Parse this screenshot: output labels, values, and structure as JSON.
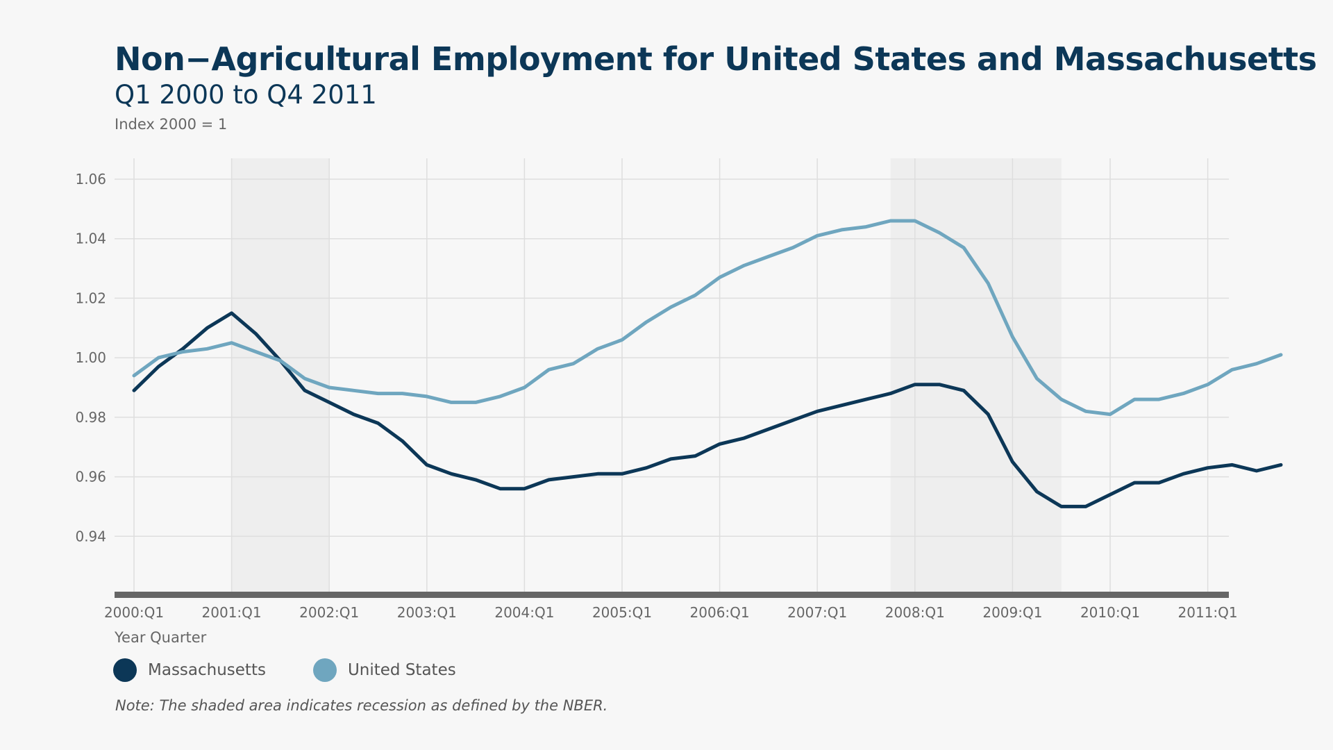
{
  "header": {
    "title": "Non−Agricultural Employment for United States and Massachusetts",
    "subtitle": "Q1 2000 to Q4 2011",
    "index_label": "Index 2000 = 1"
  },
  "legend": {
    "items": [
      {
        "label": "Massachusetts",
        "color": "#0c3757"
      },
      {
        "label": "United States",
        "color": "#6fa6bf"
      }
    ]
  },
  "note": "Note: The shaded area indicates recession as defined by the NBER.",
  "chart_data": {
    "type": "line",
    "xlabel": "Year Quarter",
    "ylabel": "",
    "ylim": [
      0.92,
      1.067
    ],
    "yticks": [
      "0.94",
      "0.96",
      "0.98",
      "1.00",
      "1.02",
      "1.04",
      "1.06"
    ],
    "xticks": [
      "2000:Q1",
      "2001:Q1",
      "2002:Q1",
      "2003:Q1",
      "2004:Q1",
      "2005:Q1",
      "2006:Q1",
      "2007:Q1",
      "2008:Q1",
      "2009:Q1",
      "2010:Q1",
      "2011:Q1"
    ],
    "x": [
      "2000:Q1",
      "2000:Q2",
      "2000:Q3",
      "2000:Q4",
      "2001:Q1",
      "2001:Q2",
      "2001:Q3",
      "2001:Q4",
      "2002:Q1",
      "2002:Q2",
      "2002:Q3",
      "2002:Q4",
      "2003:Q1",
      "2003:Q2",
      "2003:Q3",
      "2003:Q4",
      "2004:Q1",
      "2004:Q2",
      "2004:Q3",
      "2004:Q4",
      "2005:Q1",
      "2005:Q2",
      "2005:Q3",
      "2005:Q4",
      "2006:Q1",
      "2006:Q2",
      "2006:Q3",
      "2006:Q4",
      "2007:Q1",
      "2007:Q2",
      "2007:Q3",
      "2007:Q4",
      "2008:Q1",
      "2008:Q2",
      "2008:Q3",
      "2008:Q4",
      "2009:Q1",
      "2009:Q2",
      "2009:Q3",
      "2009:Q4",
      "2010:Q1",
      "2010:Q2",
      "2010:Q3",
      "2010:Q4",
      "2011:Q1",
      "2011:Q2",
      "2011:Q3",
      "2011:Q4"
    ],
    "recessions": [
      [
        "2001:Q1",
        "2001:Q4"
      ],
      [
        "2007:Q4",
        "2009:Q2"
      ]
    ],
    "grid": true,
    "legend_position": "bottom-left",
    "series": [
      {
        "name": "Massachusetts",
        "color": "#0c3757",
        "values": [
          0.989,
          0.997,
          1.003,
          1.01,
          1.015,
          1.008,
          0.999,
          0.989,
          0.985,
          0.981,
          0.978,
          0.972,
          0.964,
          0.961,
          0.959,
          0.956,
          0.956,
          0.959,
          0.96,
          0.961,
          0.961,
          0.963,
          0.966,
          0.967,
          0.971,
          0.973,
          0.976,
          0.979,
          0.982,
          0.984,
          0.986,
          0.988,
          0.991,
          0.991,
          0.989,
          0.981,
          0.965,
          0.955,
          0.95,
          0.95,
          0.954,
          0.958,
          0.958,
          0.961,
          0.963,
          0.964,
          0.962,
          0.964
        ]
      },
      {
        "name": "United States",
        "color": "#6fa6bf",
        "values": [
          0.994,
          1.0,
          1.002,
          1.003,
          1.005,
          1.002,
          0.999,
          0.993,
          0.99,
          0.989,
          0.988,
          0.988,
          0.987,
          0.985,
          0.985,
          0.987,
          0.99,
          0.996,
          0.998,
          1.003,
          1.006,
          1.012,
          1.017,
          1.021,
          1.027,
          1.031,
          1.034,
          1.037,
          1.041,
          1.043,
          1.044,
          1.046,
          1.046,
          1.042,
          1.037,
          1.025,
          1.007,
          0.993,
          0.986,
          0.982,
          0.981,
          0.986,
          0.986,
          0.988,
          0.991,
          0.996,
          0.998,
          1.001
        ]
      }
    ]
  }
}
